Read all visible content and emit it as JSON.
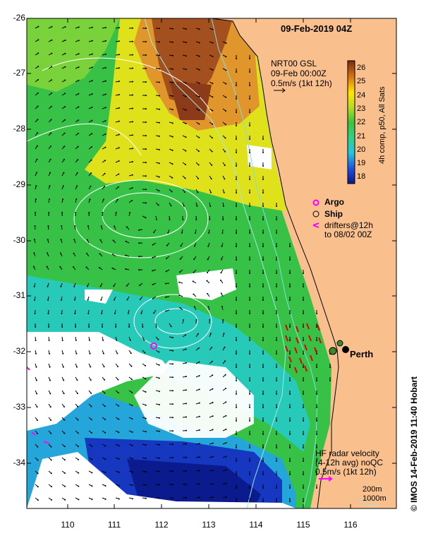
{
  "map": {
    "title": "09-Feb-2019 04Z",
    "product": {
      "name": "NRT00 GSL",
      "time": "09-Feb 00:00Z",
      "scale": "0.5m/s (1kt 12h)"
    },
    "colorbar": {
      "label": "4h comp, p50, All Sats",
      "ticks": [
        "26",
        "25",
        "24",
        "23",
        "22",
        "21",
        "20",
        "19",
        "18"
      ],
      "range": [
        18,
        26.5
      ]
    },
    "legend": {
      "argo": "Argo",
      "ship": "Ship",
      "drifters_line1": "drifters@12h",
      "drifters_line2": "to 08/02 00Z"
    },
    "place_label": "Perth",
    "hf_radar": {
      "line1": "HF radar velocity",
      "line2": "(4-12h avg) noQC",
      "line3": "0.5m/s (1kt 12h)"
    },
    "depth_legend": {
      "shallow": "200m",
      "deep": "1000m"
    },
    "credit": "© IMOS 14-Feb-2019 11:40 Hobart",
    "x_ticks": [
      "110",
      "111",
      "112",
      "113",
      "114",
      "115",
      "116"
    ],
    "y_ticks": [
      "-26",
      "-27",
      "-28",
      "-29",
      "-30",
      "-31",
      "-32",
      "-33",
      "-34"
    ],
    "colors": {
      "land": "#f9c08e",
      "warm": "#8b3a1a",
      "cool": "#0b1a8c",
      "drifter": "#ff00ff",
      "hf_vector": "#e00000",
      "isobath": "#7fe0e0"
    }
  }
}
